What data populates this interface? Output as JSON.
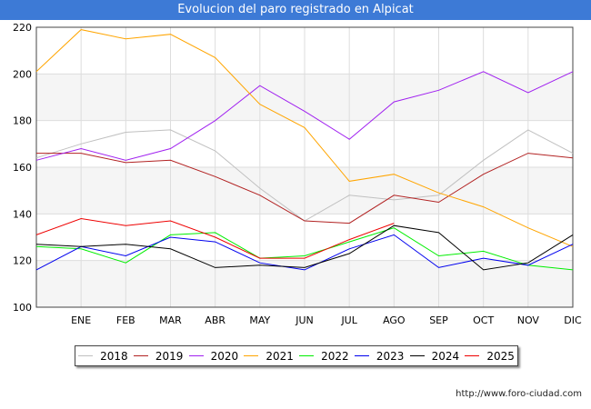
{
  "header": {
    "title": "Evolucion del paro registrado en Alpicat"
  },
  "source_text": "http://www.foro-ciudad.com",
  "chart_data": {
    "type": "line",
    "title": "Evolucion del paro registrado en Alpicat",
    "xlabel": "",
    "ylabel": "",
    "ylim": [
      100,
      220
    ],
    "yticks": [
      100,
      120,
      140,
      160,
      180,
      200,
      220
    ],
    "grid": true,
    "legend_position": "bottom",
    "categories": [
      "",
      "ENE",
      "FEB",
      "MAR",
      "ABR",
      "MAY",
      "JUN",
      "JUL",
      "AGO",
      "SEP",
      "OCT",
      "NOV",
      "DIC"
    ],
    "series": [
      {
        "name": "2018",
        "color": "#c0c0c0",
        "values": [
          164,
          170,
          175,
          176,
          167,
          151,
          137,
          148,
          146,
          148,
          163,
          176,
          166
        ]
      },
      {
        "name": "2019",
        "color": "#b22222",
        "values": [
          166,
          166,
          162,
          163,
          156,
          148,
          137,
          136,
          148,
          145,
          157,
          166,
          164
        ]
      },
      {
        "name": "2020",
        "color": "#a020f0",
        "values": [
          163,
          168,
          163,
          168,
          180,
          195,
          184,
          172,
          188,
          193,
          201,
          192,
          201
        ]
      },
      {
        "name": "2021",
        "color": "#ffa500",
        "values": [
          201,
          219,
          215,
          217,
          207,
          187,
          177,
          154,
          157,
          149,
          143,
          134,
          126
        ]
      },
      {
        "name": "2022",
        "color": "#00ee00",
        "values": [
          126,
          125,
          119,
          131,
          132,
          121,
          122,
          128,
          134,
          122,
          124,
          118,
          116
        ]
      },
      {
        "name": "2023",
        "color": "#0000ee",
        "values": [
          116,
          126,
          122,
          130,
          128,
          119,
          116,
          125,
          131,
          117,
          121,
          118,
          127
        ]
      },
      {
        "name": "2024",
        "color": "#000000",
        "values": [
          127,
          126,
          127,
          125,
          117,
          118,
          117,
          123,
          135,
          132,
          116,
          119,
          131
        ]
      },
      {
        "name": "2025",
        "color": "#ee0000",
        "values": [
          131,
          138,
          135,
          137,
          130,
          121,
          121,
          129,
          136,
          null,
          null,
          null,
          null
        ]
      }
    ]
  }
}
